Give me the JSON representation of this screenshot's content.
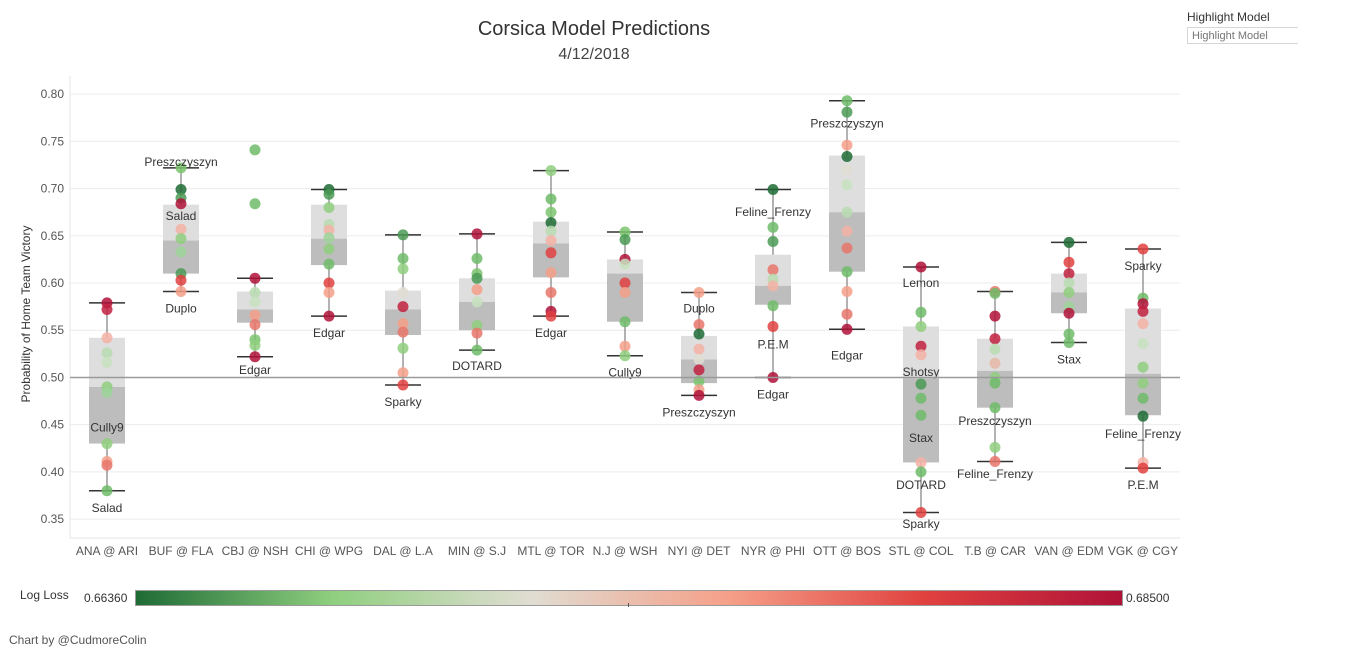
{
  "header": {
    "title": "Corsica Model Predictions",
    "subtitle": "4/12/2018"
  },
  "highlight": {
    "label": "Highlight Model",
    "placeholder": "Highlight Model"
  },
  "legend": {
    "label": "Log Loss",
    "min": "0.66360",
    "max": "0.68500",
    "colors": [
      "#1e6b35",
      "#8fcf7f",
      "#e0ddd2",
      "#f5a089",
      "#e0413f",
      "#b01238"
    ]
  },
  "credit": "Chart by @CudmoreColin",
  "chart_data": {
    "type": "box-dot",
    "ylabel": "Probability of Home Team Victory",
    "ylim": [
      0.33,
      0.815
    ],
    "yticks": [
      "0.80",
      "0.75",
      "0.70",
      "0.65",
      "0.60",
      "0.55",
      "0.50",
      "0.45",
      "0.40",
      "0.35"
    ],
    "reference_line": 0.5,
    "games": [
      {
        "name": "ANA @ ARI",
        "box": [
          0.38,
          0.43,
          0.49,
          0.542,
          0.579
        ],
        "points": [
          [
            0.579,
            "#b01238"
          ],
          [
            0.572,
            "#c2213f"
          ],
          [
            0.542,
            "#f5b2a6"
          ],
          [
            0.526,
            "#b8dcb0"
          ],
          [
            0.516,
            "#c8e2c0"
          ],
          [
            0.49,
            "#8fcf7f"
          ],
          [
            0.484,
            "#9ed49a"
          ],
          [
            0.43,
            "#8fcf7f"
          ],
          [
            0.411,
            "#f5a089"
          ],
          [
            0.407,
            "#e8756b"
          ],
          [
            0.38,
            "#6fbb6a"
          ]
        ],
        "labels": [
          [
            "Cully9",
            0.447
          ],
          [
            "Salad",
            0.362
          ]
        ]
      },
      {
        "name": "BUF @ FLA",
        "box": [
          0.591,
          0.61,
          0.645,
          0.683,
          0.722
        ],
        "points": [
          [
            0.722,
            "#7cc46f"
          ],
          [
            0.699,
            "#1e6b35"
          ],
          [
            0.69,
            "#4a9a55"
          ],
          [
            0.684,
            "#b01238"
          ],
          [
            0.657,
            "#f5b2a6"
          ],
          [
            0.647,
            "#8fcf7f"
          ],
          [
            0.633,
            "#9ed49a"
          ],
          [
            0.61,
            "#4a9a55"
          ],
          [
            0.603,
            "#e0413f"
          ],
          [
            0.591,
            "#f5a089"
          ]
        ],
        "labels": [
          [
            "Preszczyszyn",
            0.728
          ],
          [
            "Salad",
            0.671
          ],
          [
            "Duplo",
            0.573
          ]
        ]
      },
      {
        "name": "CBJ @ NSH",
        "box": [
          0.522,
          0.558,
          0.572,
          0.591,
          0.605
        ],
        "points": [
          [
            0.741,
            "#6fbb6a"
          ],
          [
            0.684,
            "#6fbb6a"
          ],
          [
            0.605,
            "#b01238"
          ],
          [
            0.59,
            "#b8dcb0"
          ],
          [
            0.58,
            "#c8e2c0"
          ],
          [
            0.566,
            "#f5a089"
          ],
          [
            0.556,
            "#e8756b"
          ],
          [
            0.54,
            "#7cc46f"
          ],
          [
            0.534,
            "#8fcf7f"
          ],
          [
            0.522,
            "#b01238"
          ]
        ],
        "labels": [
          [
            "Edgar",
            0.508
          ]
        ]
      },
      {
        "name": "CHI @ WPG",
        "box": [
          0.565,
          0.619,
          0.647,
          0.683,
          0.699
        ],
        "points": [
          [
            0.699,
            "#1e6b35"
          ],
          [
            0.694,
            "#4a9a55"
          ],
          [
            0.68,
            "#8fcf7f"
          ],
          [
            0.662,
            "#b8dcb0"
          ],
          [
            0.656,
            "#f5b2a6"
          ],
          [
            0.648,
            "#9ed49a"
          ],
          [
            0.636,
            "#8fcf7f"
          ],
          [
            0.62,
            "#6fbb6a"
          ],
          [
            0.6,
            "#e0413f"
          ],
          [
            0.59,
            "#f5a089"
          ],
          [
            0.565,
            "#b01238"
          ]
        ],
        "labels": [
          [
            "Edgar",
            0.547
          ]
        ]
      },
      {
        "name": "DAL @ L.A",
        "box": [
          0.492,
          0.545,
          0.572,
          0.592,
          0.651
        ],
        "points": [
          [
            0.651,
            "#4a9a55"
          ],
          [
            0.626,
            "#6fbb6a"
          ],
          [
            0.615,
            "#8fcf7f"
          ],
          [
            0.59,
            "#e0ddd2"
          ],
          [
            0.575,
            "#c2213f"
          ],
          [
            0.557,
            "#f5a089"
          ],
          [
            0.548,
            "#e8756b"
          ],
          [
            0.531,
            "#8fcf7f"
          ],
          [
            0.505,
            "#f5a089"
          ],
          [
            0.492,
            "#e0413f"
          ]
        ],
        "labels": [
          [
            "Sparky",
            0.474
          ]
        ]
      },
      {
        "name": "MIN @ S.J",
        "box": [
          0.529,
          0.55,
          0.58,
          0.605,
          0.652
        ],
        "points": [
          [
            0.652,
            "#b01238"
          ],
          [
            0.626,
            "#6fbb6a"
          ],
          [
            0.61,
            "#7cc46f"
          ],
          [
            0.605,
            "#4a9a55"
          ],
          [
            0.593,
            "#f5a089"
          ],
          [
            0.58,
            "#c8e2c0"
          ],
          [
            0.555,
            "#8fcf7f"
          ],
          [
            0.547,
            "#e8756b"
          ],
          [
            0.529,
            "#6fbb6a"
          ]
        ],
        "labels": [
          [
            "DOTARD",
            0.512
          ]
        ]
      },
      {
        "name": "MTL @ TOR",
        "box": [
          0.565,
          0.606,
          0.642,
          0.665,
          0.719
        ],
        "points": [
          [
            0.719,
            "#8fcf7f"
          ],
          [
            0.689,
            "#6fbb6a"
          ],
          [
            0.675,
            "#7cc46f"
          ],
          [
            0.664,
            "#1e6b35"
          ],
          [
            0.655,
            "#b8dcb0"
          ],
          [
            0.645,
            "#f5b2a6"
          ],
          [
            0.632,
            "#e0413f"
          ],
          [
            0.611,
            "#f5a089"
          ],
          [
            0.59,
            "#e8756b"
          ],
          [
            0.57,
            "#b01238"
          ],
          [
            0.565,
            "#e0413f"
          ]
        ],
        "labels": [
          [
            "Edgar",
            0.547
          ]
        ]
      },
      {
        "name": "N.J @ WSH",
        "box": [
          0.523,
          0.559,
          0.61,
          0.625,
          0.654
        ],
        "points": [
          [
            0.654,
            "#7cc46f"
          ],
          [
            0.646,
            "#4a9a55"
          ],
          [
            0.625,
            "#b01238"
          ],
          [
            0.62,
            "#c8e2c0"
          ],
          [
            0.6,
            "#e0413f"
          ],
          [
            0.59,
            "#f5a089"
          ],
          [
            0.559,
            "#6fbb6a"
          ],
          [
            0.533,
            "#f5a089"
          ],
          [
            0.523,
            "#8fcf7f"
          ]
        ],
        "labels": [
          [
            "Cully9",
            0.505
          ]
        ]
      },
      {
        "name": "NYI @ DET",
        "box": [
          0.481,
          0.494,
          0.519,
          0.544,
          0.59
        ],
        "points": [
          [
            0.59,
            "#f5a089"
          ],
          [
            0.556,
            "#e8756b"
          ],
          [
            0.546,
            "#1e6b35"
          ],
          [
            0.53,
            "#f5b2a6"
          ],
          [
            0.519,
            "#e0ddd2"
          ],
          [
            0.508,
            "#c2213f"
          ],
          [
            0.496,
            "#7cc46f"
          ],
          [
            0.487,
            "#f5a089"
          ],
          [
            0.481,
            "#b01238"
          ]
        ],
        "labels": [
          [
            "Duplo",
            0.573
          ],
          [
            "Preszczyszyn",
            0.463
          ]
        ]
      },
      {
        "name": "NYR @ PHI",
        "box": [
          0.5,
          0.577,
          0.597,
          0.63,
          0.699
        ],
        "points": [
          [
            0.699,
            "#1e6b35"
          ],
          [
            0.659,
            "#6fbb6a"
          ],
          [
            0.644,
            "#4a9a55"
          ],
          [
            0.614,
            "#e8756b"
          ],
          [
            0.604,
            "#b8dcb0"
          ],
          [
            0.597,
            "#f5b2a6"
          ],
          [
            0.576,
            "#6fbb6a"
          ],
          [
            0.554,
            "#e0413f"
          ],
          [
            0.5,
            "#b01238"
          ]
        ],
        "labels": [
          [
            "Feline_Frenzy",
            0.675
          ],
          [
            "P.E.M",
            0.535
          ],
          [
            "Edgar",
            0.482
          ]
        ]
      },
      {
        "name": "OTT @ BOS",
        "box": [
          0.551,
          0.612,
          0.675,
          0.735,
          0.793
        ],
        "points": [
          [
            0.793,
            "#6fbb6a"
          ],
          [
            0.781,
            "#4a9a55"
          ],
          [
            0.746,
            "#f5a089"
          ],
          [
            0.734,
            "#1e6b35"
          ],
          [
            0.72,
            "#e0ddd2"
          ],
          [
            0.704,
            "#c8e2c0"
          ],
          [
            0.675,
            "#b8dcb0"
          ],
          [
            0.655,
            "#f5b2a6"
          ],
          [
            0.637,
            "#e8756b"
          ],
          [
            0.612,
            "#6fbb6a"
          ],
          [
            0.591,
            "#f5a089"
          ],
          [
            0.567,
            "#e8756b"
          ],
          [
            0.551,
            "#b01238"
          ]
        ],
        "labels": [
          [
            "Preszczyszyn",
            0.769
          ],
          [
            "Edgar",
            0.523
          ]
        ]
      },
      {
        "name": "STL @ COL",
        "box": [
          0.357,
          0.41,
          0.499,
          0.554,
          0.617
        ],
        "points": [
          [
            0.617,
            "#b01238"
          ],
          [
            0.569,
            "#6fbb6a"
          ],
          [
            0.554,
            "#8fcf7f"
          ],
          [
            0.533,
            "#c2213f"
          ],
          [
            0.524,
            "#f5b2a6"
          ],
          [
            0.493,
            "#4a9a55"
          ],
          [
            0.478,
            "#6fbb6a"
          ],
          [
            0.46,
            "#6fbb6a"
          ],
          [
            0.41,
            "#f5b2a6"
          ],
          [
            0.4,
            "#6fbb6a"
          ],
          [
            0.357,
            "#e0413f"
          ]
        ],
        "labels": [
          [
            "Lemon",
            0.6
          ],
          [
            "Shotsy",
            0.506
          ],
          [
            "Stax",
            0.436
          ],
          [
            "DOTARD",
            0.386
          ],
          [
            "Sparky",
            0.345
          ]
        ]
      },
      {
        "name": "T.B @ CAR",
        "box": [
          0.411,
          0.468,
          0.507,
          0.541,
          0.591
        ],
        "points": [
          [
            0.591,
            "#e8756b"
          ],
          [
            0.589,
            "#6fbb6a"
          ],
          [
            0.565,
            "#b01238"
          ],
          [
            0.541,
            "#c2213f"
          ],
          [
            0.53,
            "#b8dcb0"
          ],
          [
            0.515,
            "#e8b8a8"
          ],
          [
            0.5,
            "#8fcf7f"
          ],
          [
            0.494,
            "#6fbb6a"
          ],
          [
            0.468,
            "#6fbb6a"
          ],
          [
            0.426,
            "#8fcf7f"
          ],
          [
            0.411,
            "#e8756b"
          ]
        ],
        "labels": [
          [
            "Preszczyszyn",
            0.454
          ],
          [
            "Feline_Frenzy",
            0.398
          ]
        ]
      },
      {
        "name": "VAN @ EDM",
        "box": [
          0.537,
          0.568,
          0.59,
          0.61,
          0.643
        ],
        "points": [
          [
            0.643,
            "#1e6b35"
          ],
          [
            0.622,
            "#e0413f"
          ],
          [
            0.61,
            "#c2213f"
          ],
          [
            0.6,
            "#b8dcb0"
          ],
          [
            0.59,
            "#8fcf7f"
          ],
          [
            0.575,
            "#9ed49a"
          ],
          [
            0.568,
            "#b01238"
          ],
          [
            0.546,
            "#6fbb6a"
          ],
          [
            0.537,
            "#6fbb6a"
          ]
        ],
        "labels": [
          [
            "Stax",
            0.519
          ]
        ]
      },
      {
        "name": "VGK @ CGY",
        "box": [
          0.404,
          0.46,
          0.504,
          0.573,
          0.636
        ],
        "points": [
          [
            0.636,
            "#e0413f"
          ],
          [
            0.584,
            "#6fbb6a"
          ],
          [
            0.578,
            "#b01238"
          ],
          [
            0.57,
            "#c2213f"
          ],
          [
            0.557,
            "#f5b2a6"
          ],
          [
            0.536,
            "#c8e2c0"
          ],
          [
            0.511,
            "#8fcf7f"
          ],
          [
            0.494,
            "#8fcf7f"
          ],
          [
            0.478,
            "#6fbb6a"
          ],
          [
            0.459,
            "#1e6b35"
          ],
          [
            0.41,
            "#f5b2a6"
          ],
          [
            0.404,
            "#e0413f"
          ]
        ],
        "labels": [
          [
            "Sparky",
            0.618
          ],
          [
            "Feline_Frenzy",
            0.44
          ],
          [
            "P.E.M",
            0.386
          ]
        ]
      }
    ]
  }
}
